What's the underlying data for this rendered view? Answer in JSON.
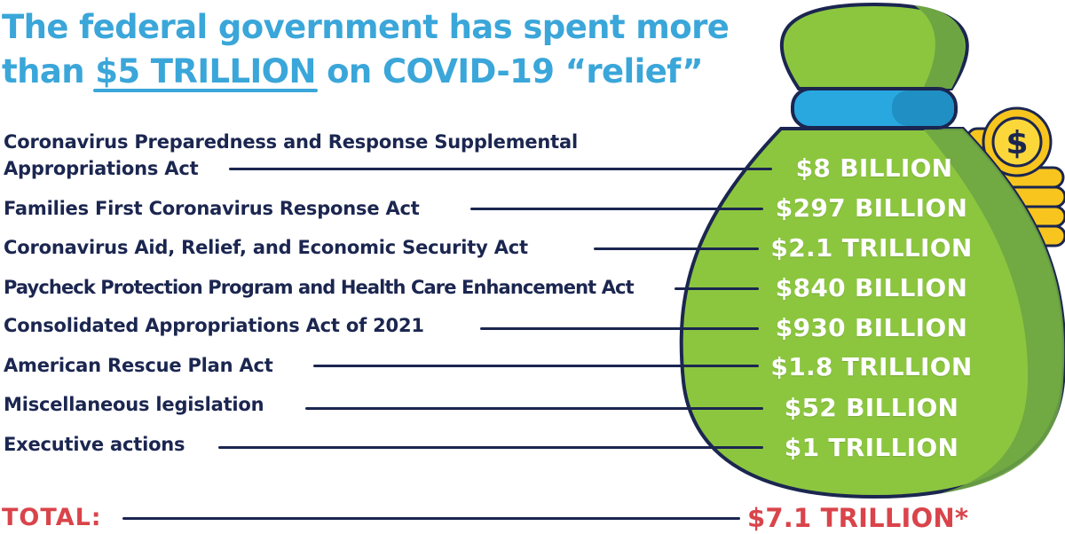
{
  "headline": {
    "line1": "The federal government has spent more",
    "line2_prefix": "than ",
    "line2_highlight": "$5 TRILLION",
    "line2_suffix": " on COVID-19 “relief”"
  },
  "rows": [
    {
      "label_line1": "Coronavirus Preparedness and Response Supplemental",
      "label_line2": "Appropriations Act",
      "amount": "$8 BILLION"
    },
    {
      "label": "Families First Coronavirus Response Act",
      "amount": "$297 BILLION"
    },
    {
      "label": "Coronavirus Aid, Relief, and Economic Security Act",
      "amount": "$2.1 TRILLION"
    },
    {
      "label": "Paycheck Protection Program and Health Care Enhancement Act",
      "amount": "$840 BILLION"
    },
    {
      "label": "Consolidated Appropriations Act of 2021",
      "amount": "$930 BILLION"
    },
    {
      "label": "American Rescue Plan Act",
      "amount": "$1.8 TRILLION"
    },
    {
      "label": "Miscellaneous legislation",
      "amount": "$52 BILLION"
    },
    {
      "label": "Executive actions",
      "amount": "$1 TRILLION"
    }
  ],
  "total": {
    "label": "TOTAL:",
    "amount": "$7.1 TRILLION*"
  },
  "colors": {
    "headline": "#3aa6d9",
    "text": "#1b2650",
    "total": "#d9444a",
    "bag": "#8cc63f",
    "bag_shadow": "#6ea543",
    "band": "#29a8e0",
    "coin": "#f7c51e"
  },
  "icons": [
    "money-bag-icon",
    "gold-coins-icon",
    "dollar-sign-icon"
  ]
}
